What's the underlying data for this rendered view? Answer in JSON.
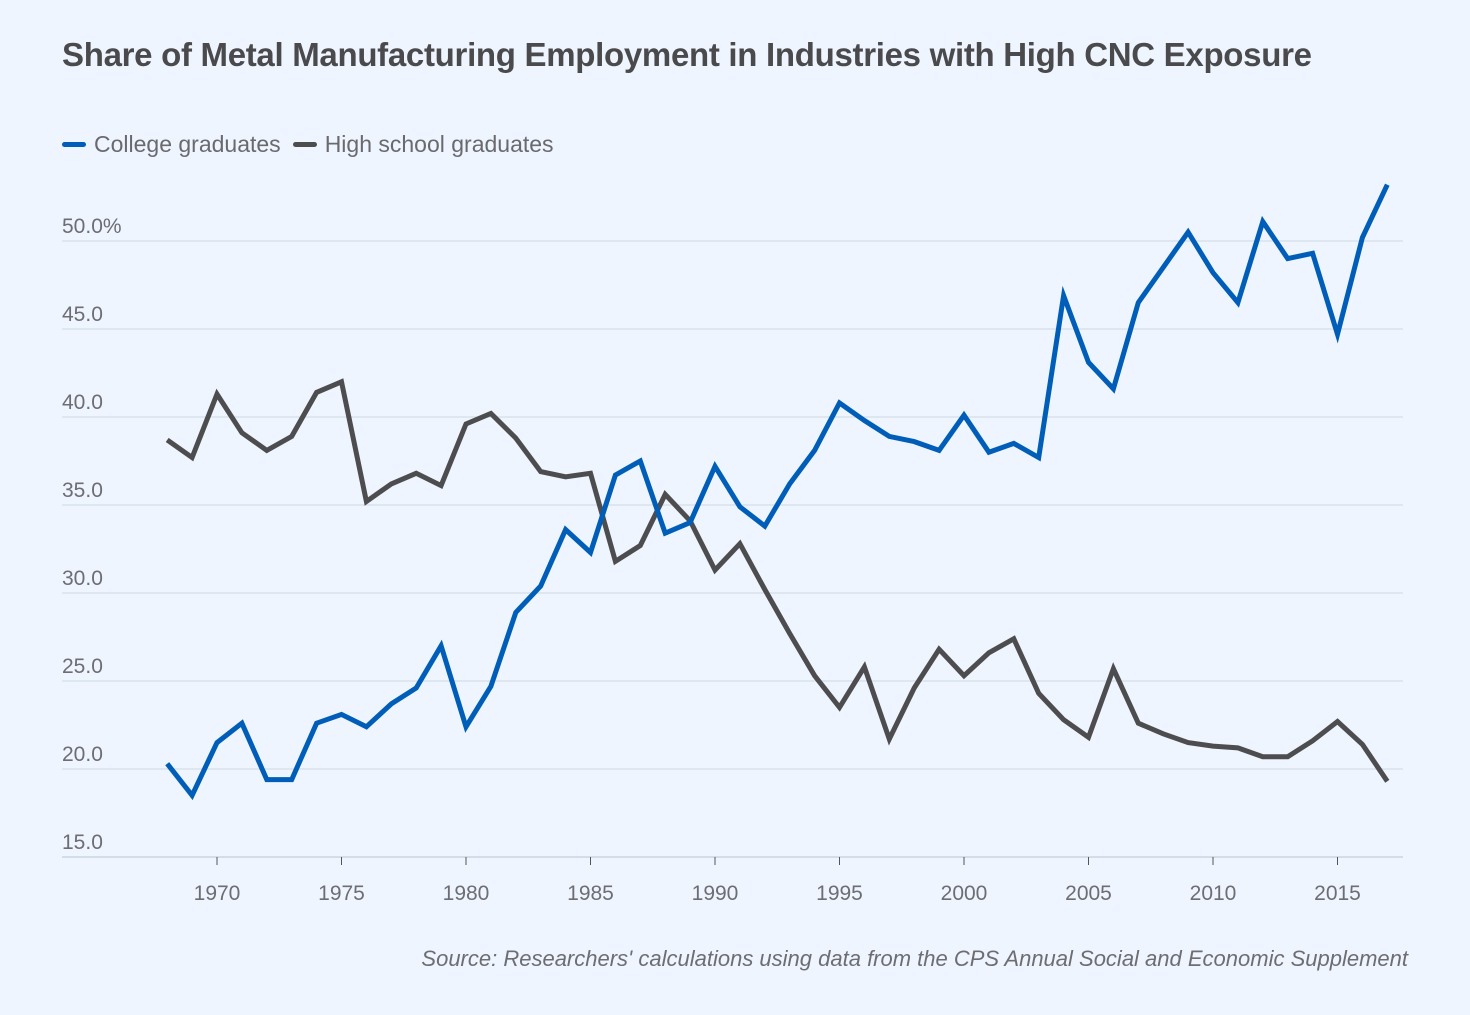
{
  "chart_data": {
    "type": "line",
    "title": "Share of Metal Manufacturing Employment in Industries with High CNC Exposure",
    "xlabel": "",
    "ylabel": "",
    "x": [
      1968,
      1969,
      1970,
      1971,
      1972,
      1973,
      1974,
      1975,
      1976,
      1977,
      1978,
      1979,
      1980,
      1981,
      1982,
      1983,
      1984,
      1985,
      1986,
      1987,
      1988,
      1989,
      1990,
      1991,
      1992,
      1993,
      1994,
      1995,
      1996,
      1997,
      1998,
      1999,
      2000,
      2001,
      2002,
      2003,
      2004,
      2005,
      2006,
      2007,
      2008,
      2009,
      2010,
      2011,
      2012,
      2013,
      2014,
      2015,
      2016,
      2017
    ],
    "series": [
      {
        "name": "College graduates",
        "color": "#005eb8",
        "values": [
          20.3,
          18.5,
          21.5,
          22.6,
          19.4,
          19.4,
          22.6,
          23.1,
          22.4,
          23.7,
          24.6,
          27.0,
          22.4,
          24.7,
          28.9,
          30.4,
          33.6,
          32.3,
          36.7,
          37.5,
          33.4,
          34.0,
          37.2,
          34.9,
          33.8,
          36.2,
          38.1,
          40.8,
          39.8,
          38.9,
          38.6,
          38.1,
          40.1,
          38.0,
          38.5,
          37.7,
          46.9,
          43.1,
          41.6,
          46.5,
          48.5,
          50.5,
          48.2,
          46.5,
          51.1,
          49.0,
          49.3,
          44.7,
          50.2,
          53.2
        ]
      },
      {
        "name": "High school graduates",
        "color": "#4d4d4f",
        "values": [
          38.7,
          37.7,
          41.3,
          39.1,
          38.1,
          38.9,
          41.4,
          42.0,
          35.2,
          36.2,
          36.8,
          36.1,
          39.6,
          40.2,
          38.8,
          36.9,
          36.6,
          36.8,
          31.8,
          32.7,
          35.6,
          34.1,
          31.3,
          32.8,
          30.2,
          27.7,
          25.3,
          23.5,
          25.8,
          21.7,
          24.6,
          26.8,
          25.3,
          26.6,
          27.4,
          24.3,
          22.8,
          21.8,
          25.7,
          22.6,
          22.0,
          21.5,
          21.3,
          21.2,
          20.7,
          20.7,
          21.6,
          22.7,
          21.4,
          19.3
        ]
      }
    ],
    "yticks": [
      15,
      20,
      25,
      30,
      35,
      40,
      45,
      50
    ],
    "ytick_labels": [
      "15.0",
      "20.0",
      "25.0",
      "30.0",
      "35.0",
      "40.0",
      "45.0",
      "50.0%"
    ],
    "ylim": [
      15,
      53.5
    ],
    "xticks": [
      1970,
      1975,
      1980,
      1985,
      1990,
      1995,
      2000,
      2005,
      2010,
      2015
    ],
    "xtick_labels": [
      "1970",
      "1975",
      "1980",
      "1985",
      "1990",
      "1995",
      "2000",
      "2005",
      "2010",
      "2015"
    ],
    "xlim": [
      1968,
      2017
    ],
    "grid": true,
    "legend_position": "top-left",
    "source": "Source: Researchers' calculations using data from the CPS Annual Social and Economic Supplement"
  },
  "colors": {
    "background": "#eef5ff",
    "gridline": "#d9e1ec"
  }
}
